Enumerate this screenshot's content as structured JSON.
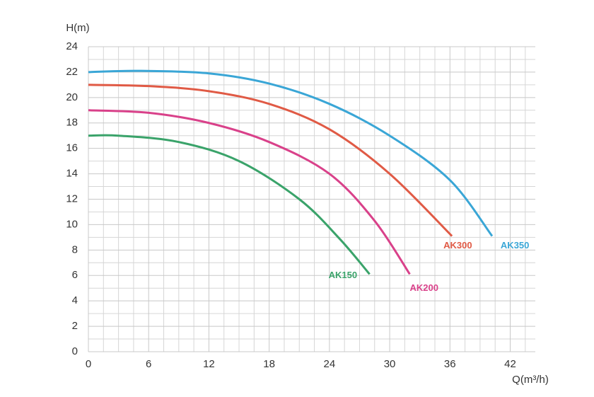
{
  "chart_data": {
    "type": "line",
    "y_label": "H(m)",
    "x_label": "Q(m³/h)",
    "xlim": [
      0,
      44.5
    ],
    "ylim": [
      0,
      24
    ],
    "xticks": [
      0,
      6,
      12,
      18,
      24,
      30,
      36,
      42
    ],
    "yticks": [
      0,
      2,
      4,
      6,
      8,
      10,
      12,
      14,
      16,
      18,
      20,
      22,
      24
    ],
    "x_minor_ticks": [
      1.5,
      3,
      4.5,
      7.5,
      9,
      10.5,
      13.5,
      15,
      16.5,
      19.5,
      21,
      22.5,
      25.5,
      27,
      28.5,
      31.5,
      33,
      34.5,
      37.5,
      39,
      40.5,
      43.5
    ],
    "y_minor_ticks": [
      1,
      3,
      5,
      7,
      9,
      11,
      13,
      15,
      17,
      19,
      21,
      23
    ],
    "grid": true,
    "series": [
      {
        "name": "AK350",
        "color": "#3aa6d6",
        "x": [
          0,
          5,
          12,
          18,
          24,
          30,
          36,
          40.2
        ],
        "values": [
          22,
          22.1,
          21.9,
          21.1,
          19.5,
          17,
          13.5,
          9.1
        ]
      },
      {
        "name": "AK300",
        "color": "#e05a45",
        "x": [
          0,
          6,
          12,
          18,
          24,
          30,
          36.2
        ],
        "values": [
          21,
          20.9,
          20.5,
          19.5,
          17.5,
          14,
          9.1
        ]
      },
      {
        "name": "AK200",
        "color": "#d9418a",
        "x": [
          0,
          6,
          12,
          18,
          24,
          28.5,
          32
        ],
        "values": [
          19,
          18.8,
          18,
          16.5,
          14,
          10.3,
          6.1
        ]
      },
      {
        "name": "AK150",
        "color": "#3aa36a",
        "x": [
          0,
          3,
          9,
          15,
          21,
          25,
          28
        ],
        "values": [
          17,
          17,
          16.5,
          15,
          12,
          8.9,
          6.1
        ]
      }
    ]
  }
}
